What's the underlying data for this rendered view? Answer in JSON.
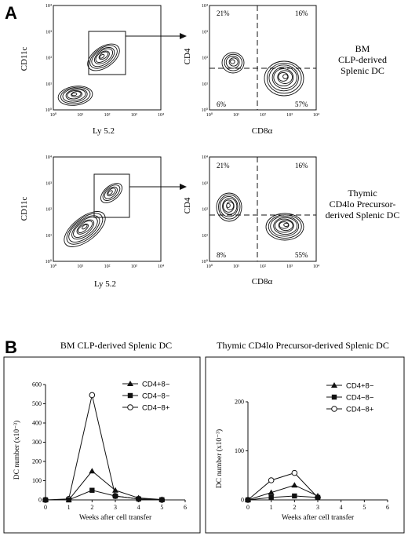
{
  "panel_a": {
    "label": "A",
    "rows": [
      {
        "sub": "CD4",
        "caption": [
          "BM",
          "CLP-derived",
          "Splenic DC"
        ],
        "gate_plot": {
          "x_label": "Ly 5.2",
          "y_label": "CD11c"
        },
        "quad_plot": {
          "x_label": "CD8α",
          "y_label": "CD4",
          "q_top_left": "21%",
          "q_top_right": "16%",
          "q_bottom_left": "6%",
          "q_bottom_right": "57%"
        }
      },
      {
        "sub": "CD4",
        "caption": [
          "Thymic",
          "CD4lo Precursor-",
          "derived Splenic DC"
        ],
        "gate_plot": {
          "x_label": "Ly 5.2",
          "y_label": "CD11c"
        },
        "quad_plot": {
          "x_label": "CD8α",
          "y_label": "CD4",
          "q_top_left": "21%",
          "q_top_right": "16%",
          "q_bottom_left": "8%",
          "q_bottom_right": "55%"
        }
      }
    ],
    "log_ticks": [
      "10⁰",
      "10¹",
      "10²",
      "10³",
      "10⁴"
    ]
  },
  "panel_b": {
    "label": "B",
    "chart_data": [
      {
        "type": "line",
        "title": "BM CLP-derived Splenic DC",
        "xlabel": "Weeks after cell transfer",
        "ylabel": "DC number (x10⁻³)",
        "xlim": [
          0,
          6
        ],
        "ylim": [
          0,
          600
        ],
        "x_ticks": [
          0,
          1,
          2,
          3,
          4,
          5,
          6
        ],
        "y_ticks": [
          0,
          100,
          200,
          300,
          400,
          500,
          600
        ],
        "legend": "top-right",
        "series": [
          {
            "name": "CD4+8−",
            "marker": "triangle",
            "x": [
              0,
              1,
              2,
              3,
              4,
              5
            ],
            "y": [
              0,
              0,
              150,
              50,
              10,
              2
            ]
          },
          {
            "name": "CD4−8−",
            "marker": "square",
            "x": [
              0,
              1,
              2,
              3,
              4,
              5
            ],
            "y": [
              0,
              0,
              50,
              20,
              5,
              1
            ]
          },
          {
            "name": "CD4−8+",
            "marker": "circle",
            "x": [
              0,
              1,
              2,
              3,
              4,
              5
            ],
            "y": [
              0,
              5,
              545,
              20,
              5,
              0
            ]
          }
        ]
      },
      {
        "type": "line",
        "title": "Thymic CD4lo Precursor-derived Splenic DC",
        "xlabel": "Weeks after cell transfer",
        "ylabel": "DC number (x10⁻³)",
        "xlim": [
          0,
          6
        ],
        "ylim": [
          0,
          200
        ],
        "x_ticks": [
          0,
          1,
          2,
          3,
          4,
          5,
          6
        ],
        "y_ticks": [
          0,
          100,
          200
        ],
        "legend": "top-right",
        "series": [
          {
            "name": "CD4+8−",
            "marker": "triangle",
            "x": [
              0,
              1,
              2,
              3
            ],
            "y": [
              0,
              15,
              30,
              8
            ]
          },
          {
            "name": "CD4−8−",
            "marker": "square",
            "x": [
              0,
              1,
              2,
              3
            ],
            "y": [
              0,
              5,
              8,
              5
            ]
          },
          {
            "name": "CD4−8+",
            "marker": "circle",
            "x": [
              0,
              1,
              2,
              3
            ],
            "y": [
              0,
              40,
              55,
              5
            ]
          }
        ]
      }
    ]
  }
}
